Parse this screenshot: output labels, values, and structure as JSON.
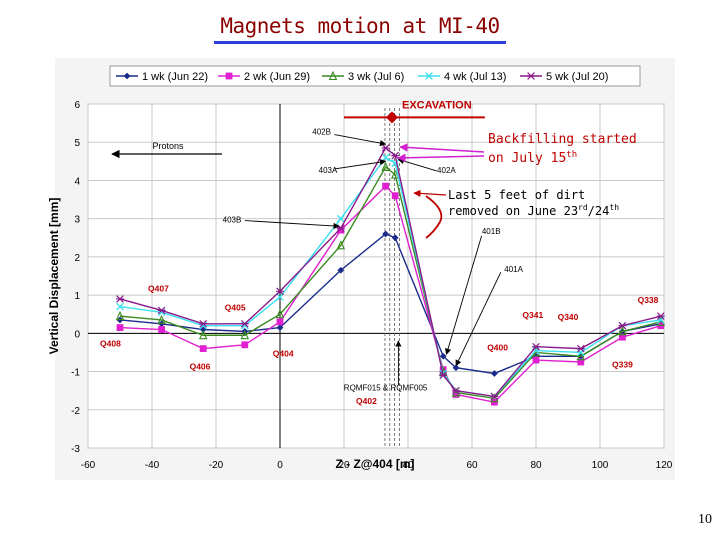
{
  "slide": {
    "title": "Magnets motion at MI-40",
    "page_number": "10"
  },
  "colors": {
    "wk1": "#1a2a8c",
    "wk2": "#e020d0",
    "wk3": "#3a8a20",
    "wk4": "#38e0f0",
    "wk5": "#8a1a8a",
    "annotation": "#c00000",
    "title": "#8b0000",
    "underline": "#2a3fd6"
  },
  "chart_data": {
    "type": "line",
    "xlabel": "Z - Z@404 [m]",
    "ylabel": "Vertical Displacement [mm]",
    "xlim": [
      -60,
      120
    ],
    "ylim": [
      -3,
      6
    ],
    "xticks": [
      -60,
      -40,
      -20,
      0,
      20,
      40,
      60,
      80,
      100,
      120
    ],
    "yticks": [
      -3,
      -2,
      -1,
      0,
      1,
      2,
      3,
      4,
      5,
      6
    ],
    "grid": true,
    "legend_position": "top",
    "x": [
      -50,
      -37,
      -24,
      -11,
      0,
      19,
      33,
      36,
      51,
      55,
      67,
      80,
      94,
      107,
      119
    ],
    "series": [
      {
        "name": "1 wk (Jun 22)",
        "marker": "diamond",
        "color_key": "wk1",
        "values": [
          0.35,
          0.25,
          0.1,
          0.05,
          0.15,
          1.65,
          2.6,
          2.5,
          -0.6,
          -0.9,
          -1.05,
          -0.6,
          -0.6,
          0.05,
          0.25
        ]
      },
      {
        "name": "2 wk (Jun 29)",
        "marker": "square",
        "color_key": "wk2",
        "values": [
          0.15,
          0.1,
          -0.4,
          -0.3,
          0.3,
          2.7,
          3.85,
          3.6,
          -0.95,
          -1.6,
          -1.8,
          -0.7,
          -0.75,
          -0.1,
          0.2
        ]
      },
      {
        "name": "3 wk (Jul 6)",
        "marker": "triangle",
        "color_key": "wk3",
        "values": [
          0.45,
          0.35,
          -0.05,
          -0.05,
          0.5,
          2.3,
          4.35,
          4.15,
          -1.0,
          -1.55,
          -1.7,
          -0.5,
          -0.6,
          0.05,
          0.3
        ]
      },
      {
        "name": "4 wk (Jul 13)",
        "marker": "x",
        "color_key": "wk4",
        "values": [
          0.7,
          0.55,
          0.2,
          0.2,
          0.95,
          3.0,
          4.6,
          4.45,
          -1.05,
          -1.5,
          -1.65,
          -0.45,
          -0.5,
          0.2,
          0.35
        ]
      },
      {
        "name": "5 wk (Jul 20)",
        "marker": "star",
        "color_key": "wk5",
        "values": [
          0.9,
          0.6,
          0.25,
          0.25,
          1.1,
          2.75,
          4.85,
          4.65,
          -1.1,
          -1.5,
          -1.65,
          -0.35,
          -0.4,
          0.2,
          0.45
        ]
      }
    ],
    "magnet_labels": [
      {
        "text": "Q407",
        "x": -38,
        "y": 1.1
      },
      {
        "text": "Q405",
        "x": -14,
        "y": 0.6
      },
      {
        "text": "Q408",
        "x": -53,
        "y": -0.35
      },
      {
        "text": "Q406",
        "x": -25,
        "y": -0.95
      },
      {
        "text": "Q404",
        "x": 1,
        "y": -0.6
      },
      {
        "text": "Q402",
        "x": 27,
        "y": -1.85
      },
      {
        "text": "Q400",
        "x": 68,
        "y": -0.45
      },
      {
        "text": "Q341",
        "x": 79,
        "y": 0.4
      },
      {
        "text": "Q340",
        "x": 90,
        "y": 0.35
      },
      {
        "text": "Q338",
        "x": 115,
        "y": 0.8
      },
      {
        "text": "Q339",
        "x": 107,
        "y": -0.9
      }
    ],
    "point_labels": [
      {
        "text": "402B",
        "x": 13,
        "y": 5.2
      },
      {
        "text": "403A",
        "x": 15,
        "y": 4.2
      },
      {
        "text": "402A",
        "x": 52,
        "y": 4.2
      },
      {
        "text": "403B",
        "x": -15,
        "y": 2.9
      },
      {
        "text": "401B",
        "x": 66,
        "y": 2.6
      },
      {
        "text": "401A",
        "x": 73,
        "y": 1.6
      },
      {
        "text": "RQMF015 & RQMF005",
        "x": 33,
        "y": -1.5
      }
    ],
    "protons_label": "Protons",
    "excavation_label": "EXCAVATION",
    "backfill_note": "Backfilling started on July 15th",
    "backfill_lines": [
      "Backfilling started",
      "on July 15"
    ],
    "backfill_sup": "th",
    "dirt_lines": {
      "line1": "Last 5 feet of dirt",
      "line2_pre": "removed on June 23",
      "line2_sup1": "rd",
      "line2_mid": "/24",
      "line2_sup2": "th"
    }
  }
}
